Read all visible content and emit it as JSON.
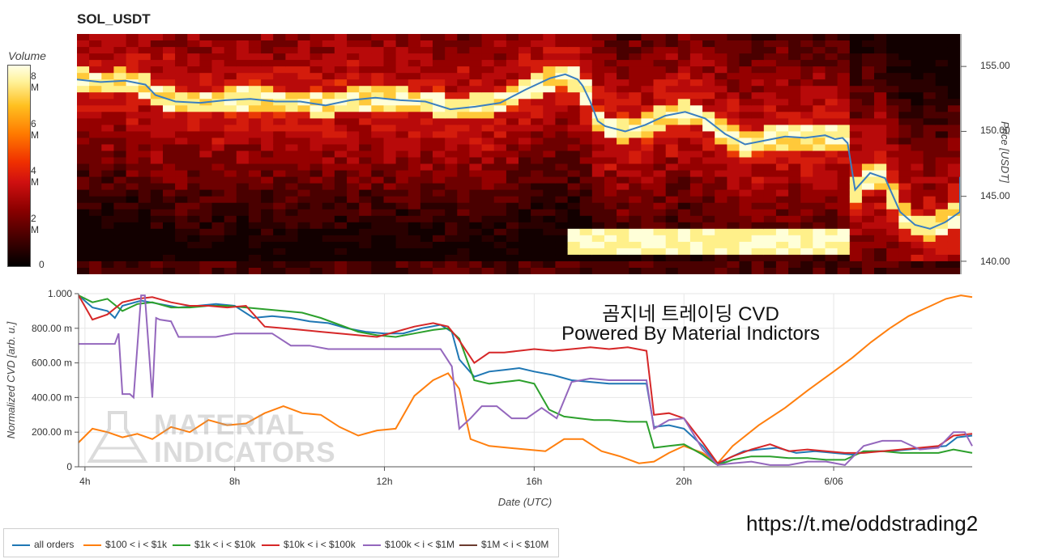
{
  "chart_data": [
    {
      "type": "heatmap",
      "title": "SOL_USDT",
      "colorbar": {
        "title": "Volume",
        "ticks": [
          "0",
          "2 M",
          "4 M",
          "6 M",
          "8 M"
        ],
        "range": [
          0,
          8800000
        ]
      },
      "y_axis": {
        "label": "Price [USDT]",
        "ticks": [
          "140.00",
          "145.00",
          "150.00",
          "155.00"
        ],
        "ylim": [
          139.0,
          157.5
        ]
      },
      "x_hours": [
        3.83,
        21.5
      ],
      "price_line": {
        "x": [
          3.83,
          4.3,
          4.8,
          5.2,
          5.4,
          5.8,
          6.3,
          6.8,
          7.3,
          7.8,
          8.3,
          8.8,
          9.3,
          9.8,
          10.3,
          10.8,
          11.3,
          11.8,
          12.3,
          12.8,
          13.3,
          13.6,
          13.85,
          13.95,
          14.1,
          14.25,
          14.4,
          14.8,
          15.2,
          15.6,
          16.0,
          16.4,
          16.8,
          17.2,
          17.6,
          18.0,
          18.4,
          18.8,
          19.0,
          19.15,
          19.25,
          19.4,
          19.7,
          20.0,
          20.3,
          20.6,
          20.9,
          21.2,
          21.5,
          22.0,
          22.5,
          23.0,
          23.5,
          24.0,
          24.5,
          25.0,
          25.5,
          26.0,
          26.5,
          27.0,
          27.5,
          28.0,
          28.5,
          29.0,
          29.5,
          29.8
        ],
        "y": [
          154.0,
          153.8,
          153.9,
          153.6,
          152.8,
          152.3,
          152.2,
          152.4,
          152.5,
          152.3,
          152.3,
          152.0,
          152.4,
          152.6,
          152.4,
          152.3,
          151.7,
          151.9,
          152.2,
          153.2,
          154.1,
          154.4,
          154.0,
          153.5,
          152.3,
          150.8,
          150.4,
          150.0,
          150.5,
          151.2,
          151.5,
          151.0,
          149.8,
          149.0,
          149.3,
          149.6,
          149.5,
          149.7,
          149.4,
          149.5,
          149.1,
          145.5,
          146.8,
          146.4,
          143.8,
          142.8,
          142.5,
          143.0,
          143.8,
          144.7,
          144.9,
          144.5,
          144.8,
          144.9,
          144.6,
          144.7,
          144.6,
          145.0,
          145.2,
          145.4,
          145.3,
          145.5,
          145.7,
          145.8,
          146.2,
          146.5
        ]
      }
    },
    {
      "type": "line",
      "x_axis": {
        "label": "Date (UTC)",
        "ticks": [
          {
            "x": 4,
            "label": "4h"
          },
          {
            "x": 8,
            "label": "8h"
          },
          {
            "x": 12,
            "label": "12h"
          },
          {
            "x": 16,
            "label": "16h"
          },
          {
            "x": 20,
            "label": "20h"
          },
          {
            "x": 24,
            "label": "6/06"
          }
        ],
        "xlim": [
          3.83,
          27.7
        ]
      },
      "y_axis": {
        "label": "Normalized CVD [arb. u.]",
        "ticks": [
          "0",
          "200.00 m",
          "400.00 m",
          "600.00 m",
          "800.00 m",
          "1.000"
        ],
        "ylim": [
          0,
          1
        ]
      },
      "grid": true,
      "legend": "bottom-left",
      "series": [
        {
          "name": "all orders",
          "color": "#1f77b4",
          "x": [
            3.83,
            4.2,
            4.6,
            4.8,
            5.0,
            5.5,
            6.0,
            6.5,
            7.0,
            7.5,
            8.0,
            8.5,
            9.0,
            9.5,
            10.0,
            10.5,
            11.0,
            11.5,
            12.0,
            12.5,
            13.0,
            13.5,
            13.8,
            14.0,
            14.4,
            14.8,
            15.2,
            15.6,
            16.0,
            16.5,
            17.0,
            17.5,
            18.0,
            18.5,
            19.0,
            19.2,
            19.6,
            20.0,
            20.5,
            20.9,
            21.2,
            21.6,
            22.0,
            22.5,
            23.0,
            23.5,
            24.0,
            24.5,
            25.0,
            25.5,
            26.0,
            26.5,
            27.0,
            27.3,
            27.7
          ],
          "y": [
            0.99,
            0.92,
            0.9,
            0.86,
            0.93,
            0.96,
            0.94,
            0.92,
            0.93,
            0.94,
            0.93,
            0.86,
            0.87,
            0.86,
            0.84,
            0.83,
            0.8,
            0.78,
            0.77,
            0.77,
            0.8,
            0.82,
            0.78,
            0.62,
            0.52,
            0.55,
            0.56,
            0.57,
            0.55,
            0.53,
            0.5,
            0.49,
            0.48,
            0.48,
            0.48,
            0.23,
            0.24,
            0.22,
            0.12,
            0.01,
            0.05,
            0.09,
            0.1,
            0.11,
            0.08,
            0.09,
            0.08,
            0.07,
            0.09,
            0.09,
            0.1,
            0.11,
            0.12,
            0.17,
            0.18
          ]
        },
        {
          "name": "$100 < i < $1k",
          "color": "#ff7f0e",
          "x": [
            3.83,
            4.2,
            4.6,
            5.0,
            5.4,
            5.8,
            6.3,
            6.8,
            7.3,
            7.8,
            8.3,
            8.8,
            9.3,
            9.8,
            10.3,
            10.8,
            11.3,
            11.8,
            12.3,
            12.8,
            13.3,
            13.7,
            14.0,
            14.3,
            14.8,
            15.3,
            15.8,
            16.3,
            16.8,
            17.3,
            17.8,
            18.3,
            18.8,
            19.2,
            19.6,
            20.0,
            20.5,
            20.9,
            21.3,
            22.0,
            22.7,
            23.3,
            24.0,
            24.5,
            25.0,
            25.5,
            26.0,
            26.5,
            27.0,
            27.4,
            27.7
          ],
          "y": [
            0.14,
            0.22,
            0.2,
            0.17,
            0.19,
            0.16,
            0.23,
            0.2,
            0.27,
            0.24,
            0.25,
            0.31,
            0.35,
            0.31,
            0.3,
            0.23,
            0.18,
            0.21,
            0.22,
            0.41,
            0.5,
            0.54,
            0.45,
            0.16,
            0.12,
            0.11,
            0.1,
            0.09,
            0.16,
            0.16,
            0.09,
            0.06,
            0.02,
            0.03,
            0.08,
            0.12,
            0.08,
            0.02,
            0.12,
            0.24,
            0.34,
            0.44,
            0.55,
            0.63,
            0.72,
            0.8,
            0.87,
            0.92,
            0.97,
            0.99,
            0.98
          ]
        },
        {
          "name": "$1k < i < $10k",
          "color": "#2ca02c",
          "x": [
            3.83,
            4.2,
            4.6,
            5.0,
            5.4,
            5.8,
            6.3,
            6.8,
            7.3,
            7.8,
            8.3,
            8.8,
            9.3,
            9.8,
            10.3,
            10.8,
            11.3,
            11.8,
            12.3,
            12.8,
            13.3,
            13.7,
            14.0,
            14.4,
            14.8,
            15.2,
            15.6,
            16.0,
            16.4,
            16.8,
            17.2,
            17.6,
            18.0,
            18.5,
            19.0,
            19.2,
            19.6,
            20.0,
            20.5,
            20.9,
            21.3,
            21.8,
            22.3,
            22.8,
            23.3,
            23.8,
            24.3,
            24.8,
            25.3,
            25.8,
            26.3,
            26.8,
            27.2,
            27.7
          ],
          "y": [
            0.99,
            0.95,
            0.97,
            0.9,
            0.94,
            0.95,
            0.92,
            0.92,
            0.93,
            0.93,
            0.92,
            0.91,
            0.9,
            0.89,
            0.86,
            0.82,
            0.78,
            0.76,
            0.75,
            0.77,
            0.79,
            0.8,
            0.74,
            0.5,
            0.48,
            0.49,
            0.5,
            0.48,
            0.33,
            0.29,
            0.28,
            0.27,
            0.27,
            0.26,
            0.26,
            0.11,
            0.12,
            0.13,
            0.07,
            0.01,
            0.04,
            0.06,
            0.06,
            0.05,
            0.05,
            0.04,
            0.04,
            0.09,
            0.09,
            0.08,
            0.08,
            0.08,
            0.1,
            0.08
          ]
        },
        {
          "name": "$10k < i < $100k",
          "color": "#d62728",
          "x": [
            3.83,
            4.2,
            4.6,
            5.0,
            5.4,
            5.8,
            6.3,
            6.8,
            7.3,
            7.8,
            8.3,
            8.8,
            9.3,
            9.8,
            10.3,
            10.8,
            11.3,
            11.8,
            12.3,
            12.8,
            13.3,
            13.7,
            14.0,
            14.4,
            14.8,
            15.2,
            15.6,
            16.0,
            16.5,
            17.0,
            17.5,
            18.0,
            18.5,
            19.0,
            19.2,
            19.6,
            20.0,
            20.5,
            20.9,
            21.3,
            21.8,
            22.3,
            22.8,
            23.3,
            23.8,
            24.3,
            24.8,
            25.3,
            25.8,
            26.3,
            26.8,
            27.2,
            27.7
          ],
          "y": [
            0.99,
            0.85,
            0.88,
            0.95,
            0.97,
            0.98,
            0.95,
            0.93,
            0.93,
            0.92,
            0.93,
            0.81,
            0.8,
            0.79,
            0.78,
            0.77,
            0.76,
            0.75,
            0.78,
            0.81,
            0.83,
            0.81,
            0.73,
            0.6,
            0.66,
            0.66,
            0.67,
            0.68,
            0.67,
            0.68,
            0.69,
            0.68,
            0.69,
            0.67,
            0.3,
            0.31,
            0.28,
            0.14,
            0.02,
            0.06,
            0.1,
            0.13,
            0.09,
            0.1,
            0.09,
            0.08,
            0.08,
            0.09,
            0.1,
            0.11,
            0.12,
            0.18,
            0.19
          ]
        },
        {
          "name": "$100k < i < $1M",
          "color": "#9467bd",
          "x": [
            3.83,
            4.8,
            4.9,
            5.0,
            5.2,
            5.3,
            5.5,
            5.6,
            5.8,
            5.9,
            6.0,
            6.3,
            6.5,
            7.0,
            7.5,
            8.0,
            8.5,
            9.0,
            9.5,
            10.0,
            10.5,
            11.0,
            11.5,
            12.0,
            12.5,
            13.0,
            13.5,
            13.8,
            14.0,
            14.3,
            14.6,
            15.0,
            15.4,
            15.8,
            16.2,
            16.6,
            17.0,
            17.5,
            18.0,
            18.5,
            19.0,
            19.2,
            19.6,
            20.0,
            20.5,
            20.9,
            21.3,
            21.8,
            22.3,
            22.8,
            23.3,
            23.8,
            24.3,
            24.8,
            25.3,
            25.8,
            26.3,
            26.8,
            27.2,
            27.5,
            27.7
          ],
          "y": [
            0.71,
            0.71,
            0.77,
            0.42,
            0.42,
            0.4,
            0.99,
            0.99,
            0.4,
            0.86,
            0.85,
            0.84,
            0.75,
            0.75,
            0.75,
            0.77,
            0.77,
            0.77,
            0.7,
            0.7,
            0.68,
            0.68,
            0.68,
            0.68,
            0.68,
            0.68,
            0.68,
            0.58,
            0.22,
            0.28,
            0.35,
            0.35,
            0.28,
            0.28,
            0.34,
            0.28,
            0.49,
            0.51,
            0.5,
            0.5,
            0.5,
            0.22,
            0.27,
            0.28,
            0.1,
            0.01,
            0.02,
            0.03,
            0.01,
            0.01,
            0.03,
            0.03,
            0.01,
            0.12,
            0.15,
            0.15,
            0.1,
            0.11,
            0.2,
            0.2,
            0.12
          ]
        },
        {
          "name": "$1M < i < $10M",
          "color": "#6b3b2f",
          "x": [],
          "y": []
        }
      ]
    }
  ],
  "watermark": {
    "line1": "곰지네 트레이딩 CVD",
    "line2": "Powered By Material Indictors"
  },
  "logo_text": {
    "line1": "MATERIAL",
    "line2": "INDICATORS"
  },
  "url": "https://t.me/oddstrading2"
}
